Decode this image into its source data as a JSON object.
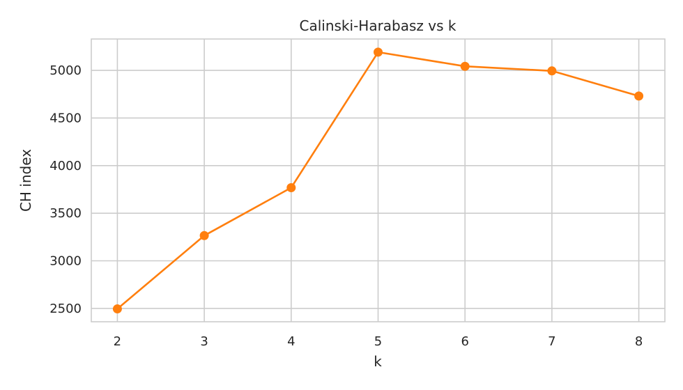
{
  "chart_data": {
    "type": "line",
    "title": "Calinski-Harabasz vs k",
    "xlabel": "k",
    "ylabel": "CH index",
    "x": [
      2,
      3,
      4,
      5,
      6,
      7,
      8
    ],
    "series": [
      {
        "values": [
          2495,
          3265,
          3768,
          5192,
          5043,
          4995,
          4731
        ]
      }
    ],
    "xlim": [
      1.7,
      8.3
    ],
    "ylim": [
      2360,
      5330
    ],
    "xticks": [
      "2",
      "3",
      "4",
      "5",
      "6",
      "7",
      "8"
    ],
    "yticks": [
      "2500",
      "3000",
      "3500",
      "4000",
      "4500",
      "5000"
    ],
    "ytick_values": [
      2500,
      3000,
      3500,
      4000,
      4500,
      5000
    ],
    "grid": true,
    "line_color": "#ff7f0e",
    "grid_color": "#cccccc",
    "text_color": "#262626"
  }
}
